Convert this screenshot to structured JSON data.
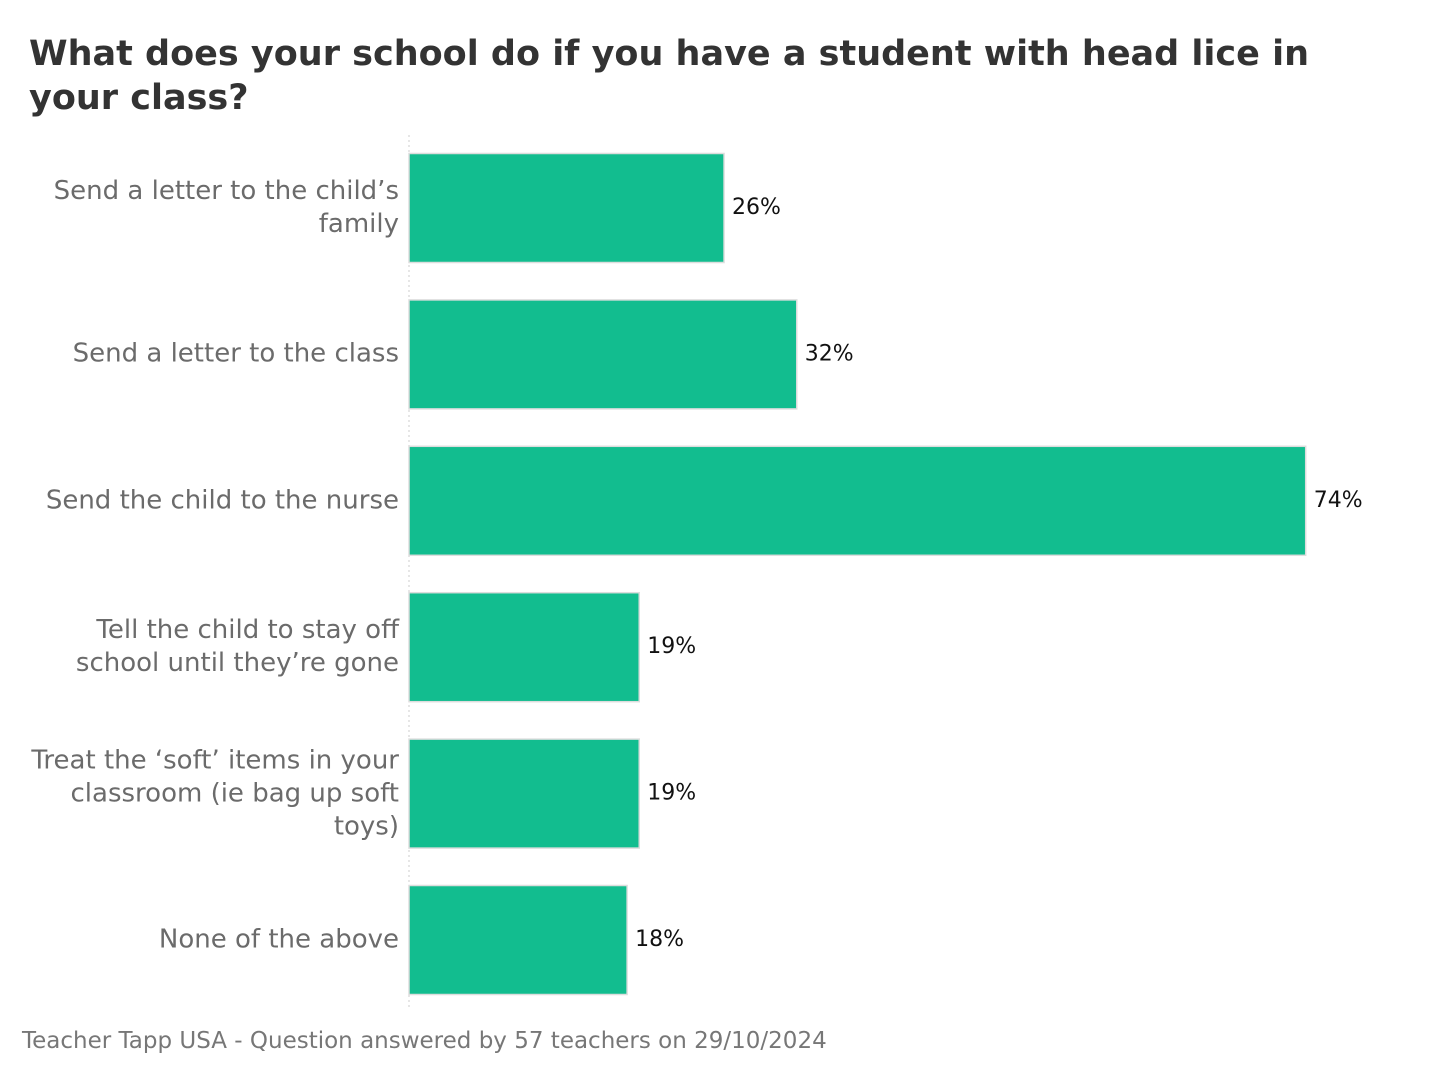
{
  "chart_data": {
    "type": "bar",
    "orientation": "horizontal",
    "title": "What does your school do if you have a student with head lice in your class?",
    "categories": [
      "Send a letter to the child’s family",
      "Send a letter to the class",
      "Send the child to the nurse",
      "Tell the child to stay off school until they’re gone",
      "Treat the ‘soft’ items in your classroom (ie bag up soft toys)",
      "None of the above"
    ],
    "values": [
      26,
      32,
      74,
      19,
      19,
      18
    ],
    "value_labels": [
      "26%",
      "32%",
      "74%",
      "19%",
      "19%",
      "18%"
    ],
    "color": "#12bd8f",
    "xlim": [
      0,
      85
    ],
    "footer": "Teacher Tapp USA - Question answered by 57 teachers on 29/10/2024"
  }
}
